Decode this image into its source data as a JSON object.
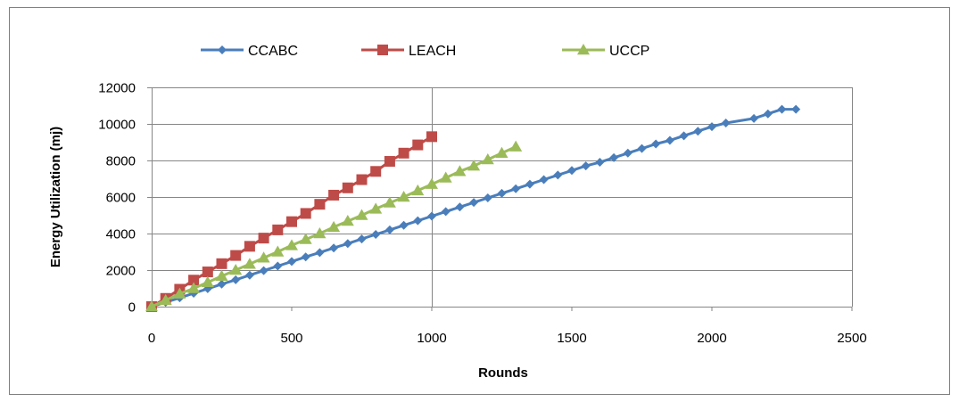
{
  "chart_data": {
    "type": "line",
    "title": "",
    "xlabel": "Rounds",
    "ylabel": "Energy Utilization (mj)",
    "xlim": [
      0,
      2500
    ],
    "ylim": [
      0,
      12000
    ],
    "x_ticks": [
      0,
      500,
      1000,
      1500,
      2000,
      2500
    ],
    "y_ticks": [
      0,
      2000,
      4000,
      6000,
      8000,
      10000,
      12000
    ],
    "x_tick_labels": [
      "0",
      "500",
      "1000",
      "1500",
      "2000",
      "2500"
    ],
    "y_tick_labels": [
      "0",
      "2000",
      "4000",
      "6000",
      "8000",
      "10000",
      "12000"
    ],
    "grid": "horizontal",
    "legend_position": "top",
    "series": [
      {
        "name": "CCABC",
        "color": "#4a7ebb",
        "marker": "diamond",
        "points": [
          [
            0,
            0
          ],
          [
            50,
            240
          ],
          [
            100,
            480
          ],
          [
            150,
            730
          ],
          [
            200,
            980
          ],
          [
            250,
            1230
          ],
          [
            300,
            1470
          ],
          [
            350,
            1720
          ],
          [
            400,
            1970
          ],
          [
            450,
            2220
          ],
          [
            500,
            2470
          ],
          [
            550,
            2720
          ],
          [
            600,
            2960
          ],
          [
            650,
            3210
          ],
          [
            700,
            3450
          ],
          [
            750,
            3700
          ],
          [
            800,
            3950
          ],
          [
            850,
            4200
          ],
          [
            900,
            4450
          ],
          [
            950,
            4700
          ],
          [
            1000,
            4950
          ],
          [
            1050,
            5200
          ],
          [
            1100,
            5450
          ],
          [
            1150,
            5700
          ],
          [
            1200,
            5950
          ],
          [
            1250,
            6200
          ],
          [
            1300,
            6450
          ],
          [
            1350,
            6700
          ],
          [
            1400,
            6950
          ],
          [
            1450,
            7200
          ],
          [
            1500,
            7450
          ],
          [
            1550,
            7700
          ],
          [
            1600,
            7900
          ],
          [
            1650,
            8150
          ],
          [
            1700,
            8400
          ],
          [
            1750,
            8650
          ],
          [
            1800,
            8900
          ],
          [
            1850,
            9100
          ],
          [
            1900,
            9350
          ],
          [
            1950,
            9600
          ],
          [
            2000,
            9850
          ],
          [
            2050,
            10050
          ],
          [
            2150,
            10300
          ],
          [
            2200,
            10550
          ],
          [
            2250,
            10800
          ],
          [
            2300,
            10800
          ]
        ]
      },
      {
        "name": "LEACH",
        "color": "#be4b48",
        "marker": "square",
        "points": [
          [
            0,
            0
          ],
          [
            50,
            450
          ],
          [
            100,
            950
          ],
          [
            150,
            1450
          ],
          [
            200,
            1900
          ],
          [
            250,
            2350
          ],
          [
            300,
            2800
          ],
          [
            350,
            3300
          ],
          [
            400,
            3750
          ],
          [
            450,
            4200
          ],
          [
            500,
            4650
          ],
          [
            550,
            5100
          ],
          [
            600,
            5600
          ],
          [
            650,
            6100
          ],
          [
            700,
            6500
          ],
          [
            750,
            6950
          ],
          [
            800,
            7400
          ],
          [
            850,
            7950
          ],
          [
            900,
            8400
          ],
          [
            950,
            8850
          ],
          [
            1000,
            9300
          ]
        ]
      },
      {
        "name": "UCCP",
        "color": "#9bbb59",
        "marker": "triangle",
        "points": [
          [
            0,
            0
          ],
          [
            50,
            350
          ],
          [
            100,
            700
          ],
          [
            150,
            1000
          ],
          [
            200,
            1330
          ],
          [
            250,
            1670
          ],
          [
            300,
            2000
          ],
          [
            350,
            2330
          ],
          [
            400,
            2670
          ],
          [
            450,
            3000
          ],
          [
            500,
            3350
          ],
          [
            550,
            3680
          ],
          [
            600,
            4000
          ],
          [
            650,
            4350
          ],
          [
            700,
            4680
          ],
          [
            750,
            5000
          ],
          [
            800,
            5350
          ],
          [
            850,
            5680
          ],
          [
            900,
            6000
          ],
          [
            950,
            6350
          ],
          [
            1000,
            6700
          ],
          [
            1050,
            7050
          ],
          [
            1100,
            7400
          ],
          [
            1150,
            7700
          ],
          [
            1200,
            8050
          ],
          [
            1250,
            8400
          ],
          [
            1300,
            8750
          ]
        ]
      }
    ]
  }
}
